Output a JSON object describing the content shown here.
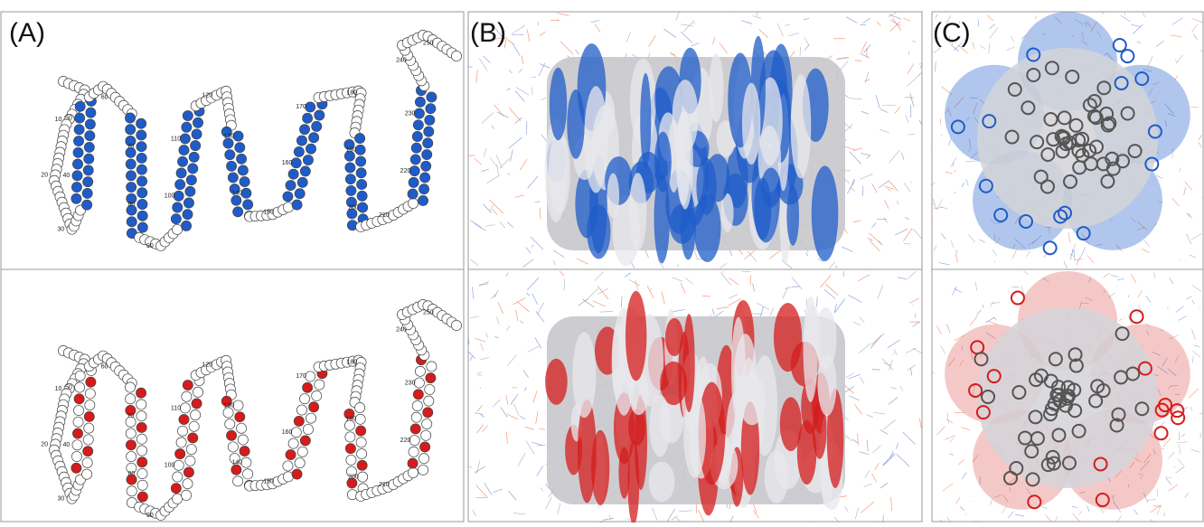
{
  "panels": {
    "a": {
      "label": "(A)"
    },
    "b": {
      "label": "(B)"
    },
    "c": {
      "label": "(C)"
    }
  },
  "residue_numbers": [
    10,
    20,
    30,
    40,
    50,
    60,
    70,
    80,
    90,
    100,
    110,
    120,
    130,
    140,
    150,
    160,
    170,
    180,
    190,
    200,
    210,
    220,
    230,
    240,
    250
  ],
  "top_color": "#1f5cc8",
  "bottom_color": "#d41c1c"
}
